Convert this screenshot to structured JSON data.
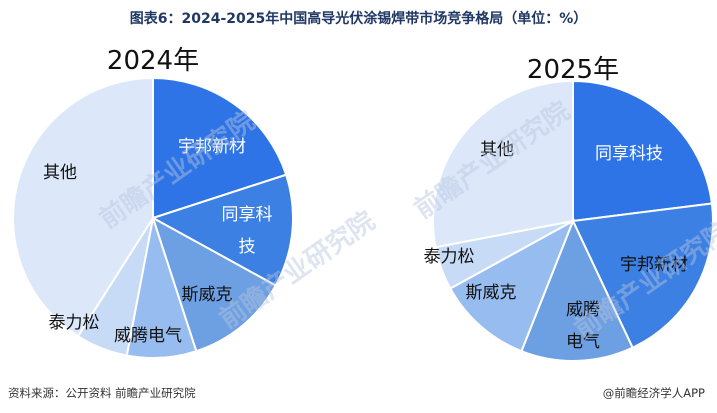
{
  "title": "图表6：2024-2025年中国高导光伏涂锡焊带市场竞争格局（单位：%）",
  "source": "资料来源：公开资料 前瞻产业研究院",
  "publisher": "@前瞻经济学人APP",
  "watermark": "前瞻产业研究院",
  "chart_data": [
    {
      "type": "pie",
      "title": "2024年",
      "categories": [
        "宇邦新材",
        "同享科技",
        "斯威克",
        "威腾电气",
        "泰力松",
        "其他"
      ],
      "values": [
        20,
        13,
        12,
        8,
        6,
        41
      ],
      "colors": [
        "#2e74e6",
        "#3b80e2",
        "#6d9fe3",
        "#97bcef",
        "#c7daf6",
        "#dce8fa"
      ],
      "start_angle_deg": 0,
      "direction": "clockwise"
    },
    {
      "type": "pie",
      "title": "2025年",
      "categories": [
        "同享科技",
        "宇邦新材",
        "威腾电气",
        "斯威克",
        "泰力松",
        "其他"
      ],
      "values": [
        23,
        20,
        13,
        11,
        5,
        28
      ],
      "colors": [
        "#2e74e6",
        "#3b80e2",
        "#6d9fe3",
        "#97bcef",
        "#c7daf6",
        "#dce8fa"
      ],
      "start_angle_deg": 0,
      "direction": "clockwise"
    }
  ]
}
